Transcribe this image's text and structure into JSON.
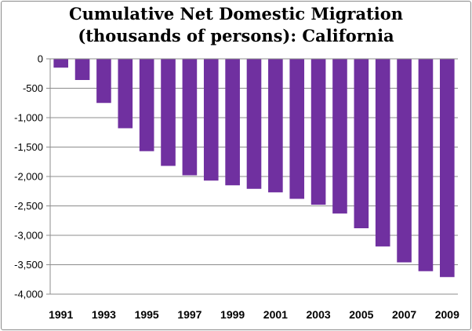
{
  "chart_data": {
    "type": "bar",
    "title_lines": [
      "Cumulative Net Domestic Migration",
      "(thousands of persons): California"
    ],
    "xlabel": "",
    "ylabel": "",
    "categories": [
      "1991",
      "1992",
      "1993",
      "1994",
      "1995",
      "1996",
      "1997",
      "1998",
      "1999",
      "2000",
      "2001",
      "2002",
      "2003",
      "2004",
      "2005",
      "2006",
      "2007",
      "2008",
      "2009"
    ],
    "x_tick_labels": [
      "1991",
      "1993",
      "1995",
      "1997",
      "1999",
      "2001",
      "2003",
      "2005",
      "2007",
      "2009"
    ],
    "values": [
      -150,
      -360,
      -750,
      -1180,
      -1570,
      -1820,
      -1980,
      -2070,
      -2150,
      -2210,
      -2270,
      -2380,
      -2480,
      -2630,
      -2880,
      -3190,
      -3460,
      -3610,
      -3710
    ],
    "ylim": [
      -4000,
      0
    ],
    "y_ticks": [
      0,
      -500,
      -1000,
      -1500,
      -2000,
      -2500,
      -3000,
      -3500,
      -4000
    ],
    "y_tick_labels": [
      "0",
      "-500",
      "-1,000",
      "-1,500",
      "-2,000",
      "-2,500",
      "-3,000",
      "-3,500",
      "-4,000"
    ],
    "grid": true,
    "legend": "none",
    "bar_color": "#7030a0"
  }
}
